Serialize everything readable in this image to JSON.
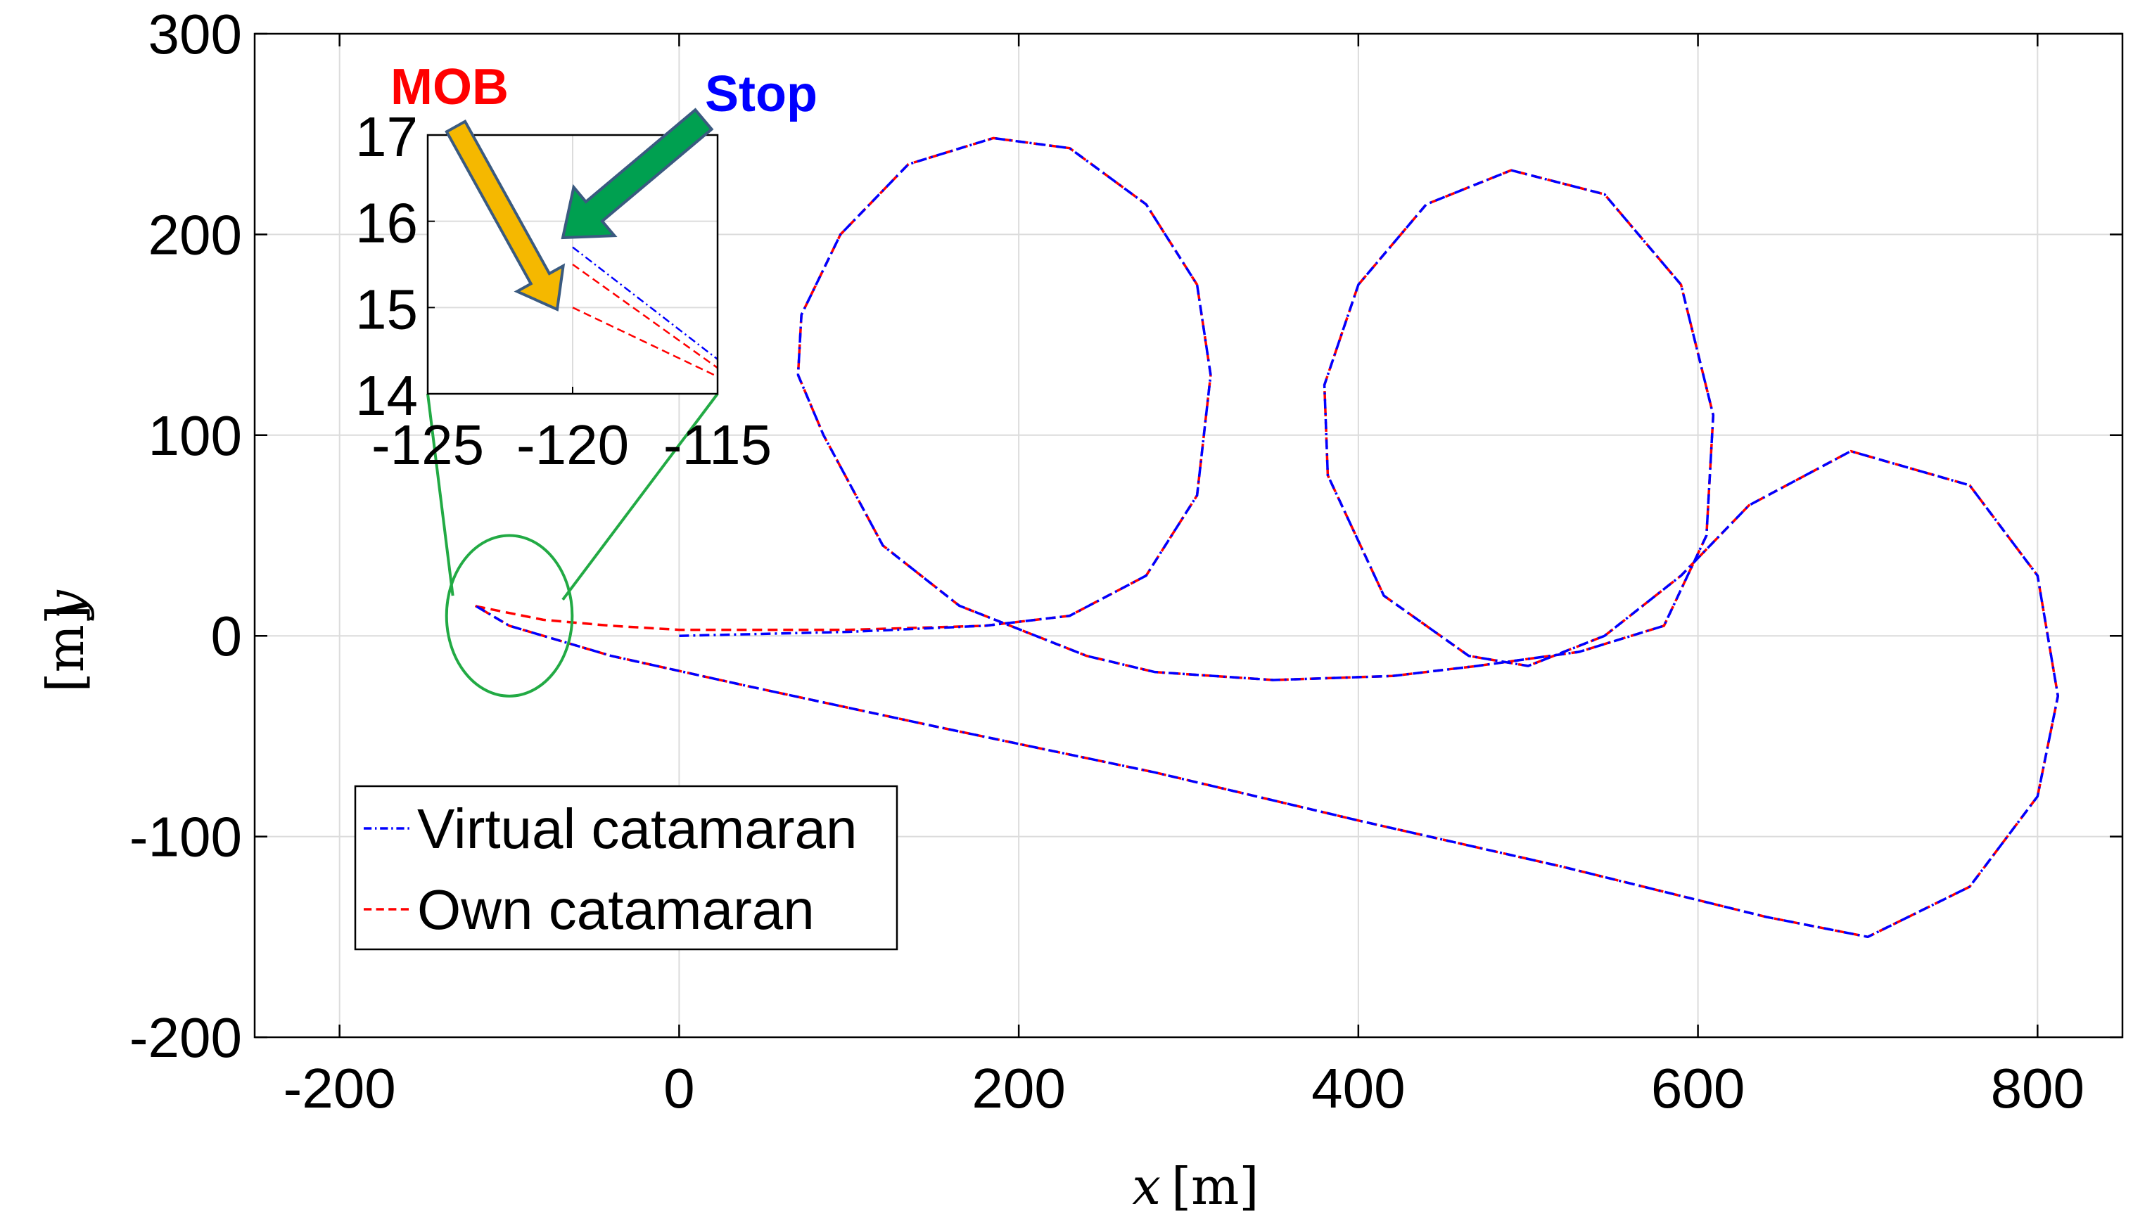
{
  "chart_data": {
    "type": "line",
    "title": "",
    "xlabel": {
      "var": "x",
      "unit": "[m]"
    },
    "ylabel": {
      "var": "y",
      "unit": "[m]"
    },
    "xlim": [
      -250,
      850
    ],
    "ylim": [
      -200,
      300
    ],
    "xticks": [
      -200,
      0,
      200,
      400,
      600,
      800
    ],
    "yticks": [
      -200,
      -100,
      0,
      100,
      200,
      300
    ],
    "grid": true,
    "legend": {
      "position": "bottom-left",
      "entries": [
        {
          "label": "Virtual catamaran",
          "color": "#0000ff",
          "style": "dash-dot"
        },
        {
          "label": "Own catamaran",
          "color": "#ff0000",
          "style": "dashed"
        }
      ]
    },
    "series": [
      {
        "name": "Virtual catamaran",
        "color": "#0000ff",
        "style": "dash-dot",
        "x": [
          0,
          100,
          180,
          230,
          275,
          305,
          313,
          305,
          275,
          230,
          185,
          135,
          95,
          72,
          70,
          85,
          120,
          165,
          195,
          240,
          280,
          350,
          420,
          470,
          530,
          580,
          605,
          609,
          590,
          545,
          490,
          440,
          400,
          380,
          382,
          415,
          465,
          500,
          545,
          590,
          630,
          690,
          760,
          800,
          812,
          800,
          760,
          700,
          640,
          520,
          400,
          280,
          150,
          40,
          -40,
          -100,
          -120
        ],
        "y": [
          0,
          2,
          5,
          10,
          30,
          70,
          130,
          175,
          215,
          243,
          248,
          235,
          200,
          160,
          130,
          100,
          45,
          15,
          5,
          -10,
          -18,
          -22,
          -20,
          -15,
          -8,
          5,
          50,
          110,
          175,
          220,
          232,
          215,
          175,
          125,
          80,
          20,
          -10,
          -15,
          0,
          30,
          65,
          92,
          75,
          30,
          -30,
          -80,
          -125,
          -150,
          -140,
          -115,
          -92,
          -68,
          -45,
          -25,
          -10,
          5,
          15
        ]
      },
      {
        "name": "Own catamaran",
        "color": "#ff0000",
        "style": "dashed",
        "x": [
          -120,
          -80,
          -40,
          0,
          100,
          180,
          230,
          275,
          305,
          313,
          305,
          275,
          230,
          185,
          135,
          95,
          72,
          70,
          85,
          120,
          165,
          195,
          240,
          280,
          350,
          420,
          470,
          530,
          580,
          605,
          609,
          590,
          545,
          490,
          440,
          400,
          380,
          382,
          415,
          465,
          500,
          545,
          590,
          630,
          690,
          760,
          800,
          812,
          800,
          760,
          700,
          640,
          520,
          400,
          280,
          150,
          40,
          -40,
          -100,
          -120
        ],
        "y": [
          14.8,
          8,
          5,
          3,
          3,
          5,
          10,
          30,
          70,
          130,
          175,
          215,
          243,
          248,
          235,
          200,
          160,
          130,
          100,
          45,
          15,
          5,
          -10,
          -18,
          -22,
          -20,
          -15,
          -8,
          5,
          50,
          110,
          175,
          220,
          232,
          215,
          175,
          125,
          80,
          20,
          -10,
          -15,
          0,
          30,
          65,
          92,
          75,
          30,
          -30,
          -80,
          -125,
          -150,
          -140,
          -115,
          -92,
          -68,
          -45,
          -25,
          -10,
          5,
          15
        ]
      }
    ],
    "inset": {
      "xlim": [
        -125,
        -115
      ],
      "ylim": [
        14,
        17
      ],
      "xticks": [
        -125,
        -120,
        -115
      ],
      "yticks": [
        14,
        15,
        16,
        17
      ],
      "grid": true,
      "series": [
        {
          "name": "Virtual catamaran",
          "color": "#0000ff",
          "style": "dash-dot",
          "x": [
            -120,
            -115
          ],
          "y": [
            15.7,
            14.4
          ]
        },
        {
          "name": "Own catamaran",
          "color": "#ff0000",
          "style": "dashed",
          "x": [
            -120,
            -115
          ],
          "y": [
            15.5,
            14.3
          ]
        },
        {
          "name": "Own catamaran",
          "color": "#ff0000",
          "style": "dashed",
          "x": [
            -120,
            -115
          ],
          "y": [
            15.0,
            14.2
          ]
        }
      ],
      "annotations": [
        {
          "text": "MOB",
          "color": "#ff0000",
          "arrow_color": "#f5b800"
        },
        {
          "text": "Stop",
          "color": "#0000ff",
          "arrow_color": "#00a050"
        }
      ],
      "zoom_circle": {
        "center_x": -100,
        "center_y": 10,
        "radius_x": 37,
        "radius_y": 40
      }
    }
  }
}
